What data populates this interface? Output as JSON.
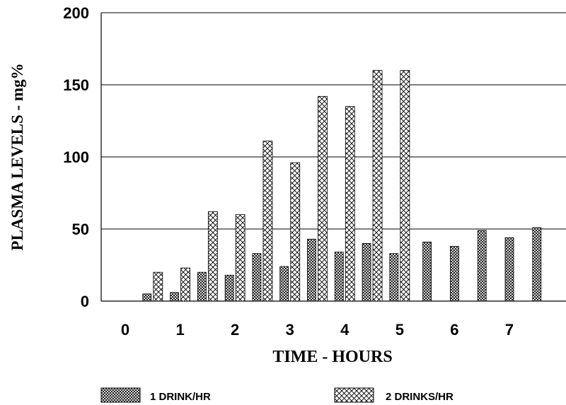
{
  "chart_data": {
    "type": "bar",
    "xlabel": "TIME - HOURS",
    "ylabel": "PLASMA LEVELS - mg%",
    "ylim": [
      0,
      200
    ],
    "y_ticks": [
      "0",
      "50",
      "100",
      "150",
      "200"
    ],
    "x_ticks": [
      "0",
      "1",
      "2",
      "3",
      "4",
      "5",
      "6",
      "7"
    ],
    "x": [
      0.5,
      1.0,
      1.5,
      2.0,
      2.5,
      3.0,
      3.5,
      4.0,
      4.5,
      5.0,
      5.5,
      6.0,
      6.5,
      7.0,
      7.5
    ],
    "series": [
      {
        "name": "1 DRINK/HR",
        "pattern": "dense-crosshatch",
        "values": [
          5,
          6,
          20,
          18,
          33,
          24,
          43,
          34,
          40,
          33,
          41,
          38,
          49,
          44,
          51
        ]
      },
      {
        "name": "2 DRINKS/HR",
        "pattern": "open-crosshatch",
        "values": [
          20,
          23,
          62,
          60,
          111,
          96,
          142,
          135,
          160,
          160,
          null,
          null,
          null,
          null,
          null
        ]
      }
    ],
    "grid": "horizontal",
    "legend": "bottom"
  }
}
